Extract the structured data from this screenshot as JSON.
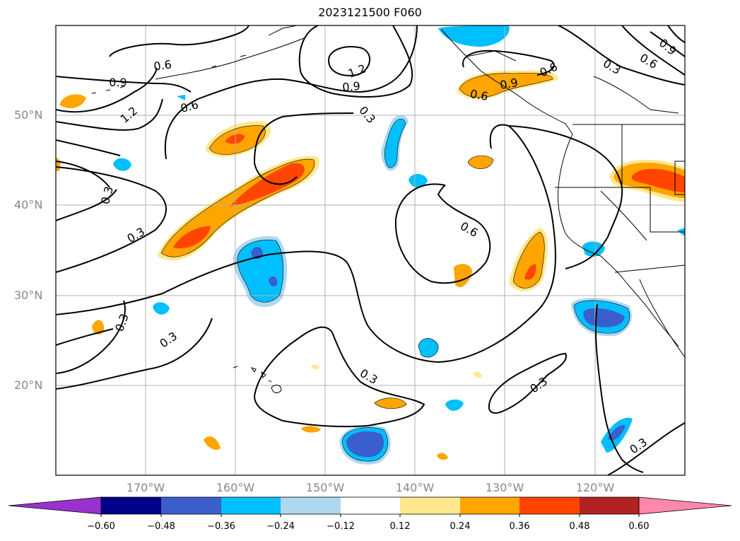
{
  "title": "2023121500 F060",
  "latitude_labels": [
    "50°N",
    "40°N",
    "30°N",
    "20°N"
  ],
  "longitude_labels": [
    "170°W",
    "160°W",
    "150°W",
    "140°W",
    "130°W",
    "120°W"
  ],
  "colorbar": {
    "tick_labels": [
      "−0.60",
      "−0.48",
      "−0.36",
      "−0.24",
      "−0.12",
      "0.12",
      "0.24",
      "0.36",
      "0.48",
      "0.60"
    ],
    "colors": [
      "#9932cc",
      "#00008b",
      "#3a5fcd",
      "#00bfff",
      "#add8f0",
      "#ffffff",
      "#ffe88c",
      "#ffa500",
      "#ff4500",
      "#b22222",
      "#ff88aa"
    ]
  },
  "contour_labels": [
    "0.6",
    "0.9",
    "1.2",
    "0.9",
    "0.6",
    "0.3",
    "0.6",
    "0.9",
    "0.6",
    "0.3",
    "0.9",
    "1.2",
    "0.6",
    "0.3",
    "0.3",
    "0.6",
    "0.3",
    "0.3",
    "0.3",
    "0.3",
    "0.3"
  ],
  "fill_colors": {
    "light_orange": "#ffe88c",
    "orange": "#ffa500",
    "red_orange": "#ff4500",
    "light_blue": "#add8f0",
    "cyan": "#00bfff",
    "blue": "#3a5fcd"
  }
}
